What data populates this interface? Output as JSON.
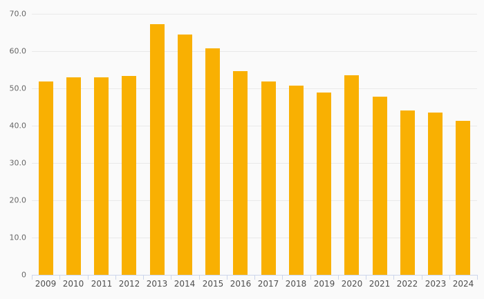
{
  "chart_data": {
    "type": "bar",
    "title": "",
    "xlabel": "",
    "ylabel": "",
    "categories": [
      "2009",
      "2010",
      "2011",
      "2012",
      "2013",
      "2014",
      "2015",
      "2016",
      "2017",
      "2018",
      "2019",
      "2020",
      "2021",
      "2022",
      "2023",
      "2024"
    ],
    "values": [
      51.8,
      52.9,
      52.9,
      53.3,
      67.3,
      64.5,
      60.7,
      54.6,
      51.8,
      50.8,
      48.9,
      53.5,
      47.7,
      44.0,
      43.6,
      41.3
    ],
    "ylim": [
      0,
      70
    ],
    "y_tick_interval": 10,
    "y_tick_labels": [
      "0",
      "10.0",
      "20.0",
      "30.0",
      "40.0",
      "50.0",
      "60.0",
      "70.0"
    ],
    "grid": true,
    "legend": false,
    "colors": {
      "bar": "#f9b002",
      "background": "#fafafa",
      "gridline": "#e9e9e9",
      "axis_line": "#ccd6eb",
      "y_label_text": "#666666",
      "x_label_text": "#4d4d4d"
    }
  }
}
